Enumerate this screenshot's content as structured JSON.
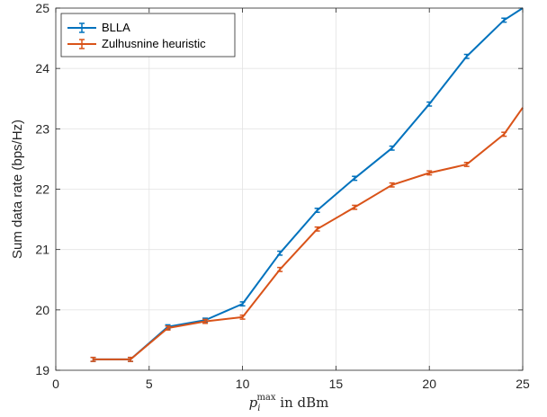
{
  "chart_data": {
    "type": "line",
    "title": "",
    "xlabel": {
      "symbol": "p",
      "subscript": "i",
      "superscript": "max",
      "suffix": " in dBm"
    },
    "ylabel": "Sum data rate (bps/Hz)",
    "xlim": [
      0,
      25
    ],
    "ylim": [
      19,
      25
    ],
    "xticks": [
      "0",
      "5",
      "10",
      "15",
      "20",
      "25"
    ],
    "yticks": [
      "19",
      "20",
      "21",
      "22",
      "23",
      "24",
      "25"
    ],
    "grid": true,
    "legend_position": "top-left",
    "x": [
      2,
      4,
      6,
      8,
      10,
      12,
      14,
      16,
      18,
      20,
      22,
      24,
      25
    ],
    "series": [
      {
        "name": "BLLA",
        "color": "#0072BD",
        "values": [
          19.18,
          19.18,
          19.72,
          19.83,
          20.1,
          20.94,
          21.65,
          22.18,
          22.68,
          23.41,
          24.2,
          24.8,
          25.0
        ]
      },
      {
        "name": "Zulhusnine heuristic",
        "color": "#D95319",
        "values": [
          19.18,
          19.18,
          19.7,
          19.81,
          19.88,
          20.67,
          21.34,
          21.7,
          22.07,
          22.27,
          22.41,
          22.91,
          23.35
        ]
      }
    ]
  }
}
